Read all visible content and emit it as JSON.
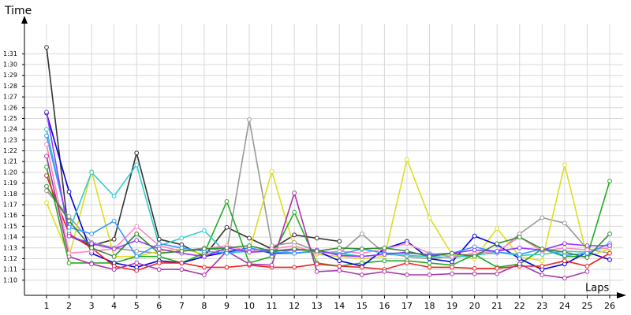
{
  "chart_data": {
    "type": "line",
    "ylabel": "Time",
    "xlabel": "Laps",
    "categories": [
      "1",
      "2",
      "3",
      "4",
      "5",
      "6",
      "7",
      "8",
      "9",
      "10",
      "11",
      "12",
      "13",
      "14",
      "15",
      "16",
      "17",
      "18",
      "19",
      "20",
      "21",
      "22",
      "23",
      "24",
      "25",
      "26"
    ],
    "ylim": [
      68.6,
      93.8
    ],
    "yticks": [
      {
        "value": 70,
        "label": "1:10"
      },
      {
        "value": 71,
        "label": "1:11"
      },
      {
        "value": 72,
        "label": "1:12"
      },
      {
        "value": 73,
        "label": "1:13"
      },
      {
        "value": 74,
        "label": "1:14"
      },
      {
        "value": 75,
        "label": "1:15"
      },
      {
        "value": 76,
        "label": "1:16"
      },
      {
        "value": 77,
        "label": "1:17"
      },
      {
        "value": 78,
        "label": "1:18"
      },
      {
        "value": 79,
        "label": "1:19"
      },
      {
        "value": 80,
        "label": "1:20"
      },
      {
        "value": 81,
        "label": "1:21"
      },
      {
        "value": 82,
        "label": "1:22"
      },
      {
        "value": 83,
        "label": "1:23"
      },
      {
        "value": 84,
        "label": "1:24"
      },
      {
        "value": 85,
        "label": "1:25"
      },
      {
        "value": 86,
        "label": "1:26"
      },
      {
        "value": 87,
        "label": "1:27"
      },
      {
        "value": 88,
        "label": "1:28"
      },
      {
        "value": 89,
        "label": "1:29"
      },
      {
        "value": 90,
        "label": "1:30"
      },
      {
        "value": 91,
        "label": "1:31"
      }
    ],
    "grid": true,
    "series": [
      {
        "color": "#333333",
        "values": [
          91.6,
          74.1,
          73.2,
          73.8,
          81.8,
          73.8,
          73.3,
          72.2,
          74.9,
          73.9,
          72.9,
          74.2,
          73.9,
          73.6,
          null,
          null,
          null,
          null,
          null,
          null,
          null,
          null,
          null,
          null,
          null,
          null
        ]
      },
      {
        "color": "#999999",
        "values": [
          78.3,
          75.9,
          73.5,
          73,
          72.7,
          72.5,
          72.7,
          73,
          72.7,
          84.9,
          73.2,
          73.5,
          72.7,
          72.5,
          74.3,
          72.5,
          72.2,
          72,
          72.2,
          72.4,
          72.5,
          74.3,
          75.8,
          75.3,
          72.9,
          72.5
        ]
      },
      {
        "color": "#dddd22",
        "values": [
          77.2,
          72.2,
          80.1,
          72.2,
          72.2,
          72.7,
          72.9,
          72.4,
          72.7,
          72.7,
          80.1,
          73,
          72.4,
          72.2,
          72,
          72.2,
          81.2,
          75.8,
          72.4,
          72,
          74.8,
          72.2,
          71.8,
          80.7,
          72.2,
          72.9
        ]
      },
      {
        "color": "#22aa22",
        "values": [
          80.5,
          71.6,
          71.6,
          71.6,
          72.2,
          72.2,
          71.6,
          72.5,
          77.3,
          71.6,
          72.2,
          76.3,
          71.6,
          71.3,
          71.6,
          71.8,
          71.8,
          71.6,
          71.4,
          72.4,
          71.2,
          71.5,
          72.9,
          72.2,
          72.2,
          79.2
        ]
      },
      {
        "color": "#0000dd",
        "values": [
          85.5,
          78.2,
          72.5,
          71.6,
          71.2,
          71.8,
          71.6,
          72.2,
          72.6,
          73,
          72.5,
          72.5,
          72.7,
          71.8,
          71.3,
          72.9,
          73.6,
          72,
          71.7,
          74.1,
          73.3,
          72,
          71,
          71.5,
          72.6,
          71.9
        ]
      },
      {
        "color": "#ee2222",
        "values": [
          79.7,
          74.3,
          73,
          71.3,
          70.9,
          71.6,
          71.6,
          71.2,
          71.2,
          71.4,
          71.2,
          71.2,
          71.5,
          71.3,
          71.2,
          71,
          71.6,
          71.2,
          71.2,
          71.1,
          71.1,
          71.3,
          71.3,
          71.8,
          71.3,
          72.5
        ]
      },
      {
        "color": "#aa33aa",
        "values": [
          81.5,
          72.2,
          71.5,
          71,
          71.6,
          71,
          71,
          70.5,
          72.7,
          71.5,
          71.4,
          78.1,
          70.8,
          70.9,
          70.5,
          70.8,
          70.5,
          70.5,
          70.6,
          70.6,
          70.6,
          71.5,
          70.5,
          70.2,
          70.8,
          null
        ]
      },
      {
        "color": "#33cccc",
        "values": [
          84,
          74.6,
          80,
          77.8,
          80.7,
          73.2,
          73.9,
          74.6,
          72.5,
          72.7,
          72.9,
          72.5,
          72.7,
          72.5,
          72.2,
          72.4,
          72.3,
          72.2,
          72.1,
          72.3,
          72.6,
          72.3,
          72.4,
          72.7,
          72.6,
          null
        ]
      },
      {
        "color": "#ff88bb",
        "values": [
          82.6,
          72.5,
          72.7,
          72.9,
          75,
          73.2,
          72.7,
          72.9,
          73.2,
          72.7,
          72.9,
          73.2,
          72.5,
          72.7,
          72.5,
          72.9,
          73.4,
          72.5,
          72.2,
          72.5,
          72.7,
          74,
          72.7,
          73,
          72.8,
          73
        ]
      },
      {
        "color": "#3399ff",
        "values": [
          83.4,
          74.9,
          74.3,
          75.5,
          72.2,
          73.4,
          73,
          72.7,
          72.5,
          73,
          72.6,
          72.5,
          72.7,
          72.4,
          72.9,
          72.5,
          72.5,
          72.4,
          72.5,
          73.1,
          72.6,
          72.4,
          72.9,
          72.3,
          72.5,
          73.4
        ]
      },
      {
        "color": "#9933ff",
        "values": [
          85.6,
          74.1,
          73.4,
          72.9,
          73.7,
          72.9,
          72.5,
          72.2,
          73,
          72.6,
          72.7,
          72.8,
          72.8,
          72.3,
          72.2,
          72.4,
          72.6,
          72.3,
          72.5,
          72.8,
          72.7,
          73,
          72.8,
          73.4,
          73.2,
          73.2
        ]
      },
      {
        "color": "#338833",
        "values": [
          78.7,
          75.5,
          73,
          72.2,
          74.3,
          72.5,
          72.7,
          72.9,
          73,
          73.2,
          72.7,
          72.9,
          72.7,
          73,
          72.9,
          73,
          72.7,
          72.2,
          72.5,
          72.2,
          73.4,
          74,
          72.9,
          72.6,
          72.1,
          74.3
        ]
      }
    ]
  }
}
